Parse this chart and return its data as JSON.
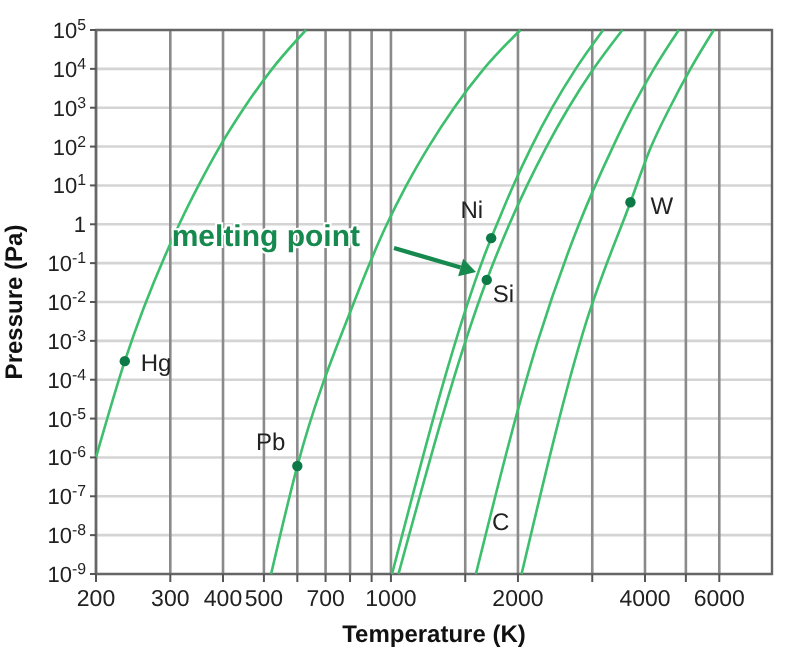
{
  "chart_data": {
    "type": "line",
    "xlabel": "Temperature (K)",
    "ylabel": "Pressure (Pa)",
    "log": "xy",
    "grid": true,
    "annotations": [
      "melting point"
    ],
    "marker": "none",
    "line_style": "solid",
    "xlim": [
      200,
      8000
    ],
    "ylim": [
      1e-09,
      100000
    ],
    "xticks": [
      200,
      300,
      400,
      500,
      {
        "value": 600,
        "label": null
      },
      700,
      {
        "value": 800,
        "label": null
      },
      {
        "value": 900,
        "label": null
      },
      1000,
      {
        "value": 1500,
        "label": null
      },
      2000,
      {
        "value": 3000,
        "label": null
      },
      4000,
      {
        "value": 5000,
        "label": null
      },
      6000
    ],
    "yticks": [
      {
        "value": 1e-09,
        "label": "10$^{-9}$"
      },
      {
        "value": 1e-08,
        "label": "10$^{-8}$"
      },
      {
        "value": 1e-07,
        "label": "10$^{-7}$"
      },
      {
        "value": 1e-06,
        "label": "10$^{-6}$"
      },
      {
        "value": 1e-05,
        "label": "10$^{-5}$"
      },
      {
        "value": 0.0001,
        "label": "10$^{-4}$"
      },
      {
        "value": 0.001,
        "label": "10$^{-3}$"
      },
      {
        "value": 0.01,
        "label": "10$^{-2}$"
      },
      {
        "value": 0.1,
        "label": "10$^{-1}$"
      },
      1,
      {
        "value": 10,
        "label": "10$^{1}$"
      },
      {
        "value": 100,
        "label": "10$^{2}$"
      },
      {
        "value": 1000,
        "label": "10$^{3}$"
      },
      {
        "value": 10000,
        "label": "10$^{4}$"
      },
      {
        "value": 100000,
        "label": "10$^{5}$"
      }
    ],
    "series": [
      {
        "name": "Hg",
        "color": "#3dbf6e",
        "x": [
          200,
          234,
          315,
          350,
          393,
          449,
          523,
          629
        ],
        "values": [
          1e-06,
          0.0003,
          1,
          10,
          100,
          1000,
          10000,
          100000
        ]
      },
      {
        "name": "Pb",
        "color": "#3dbf6e",
        "x": [
          520,
          600,
          818,
          978,
          1088,
          1229,
          1412,
          1660,
          2027
        ],
        "values": [
          1e-09,
          6e-07,
          0.01,
          1,
          10,
          100,
          1000,
          10000,
          100000
        ]
      },
      {
        "name": "Ni",
        "color": "#3dbf6e",
        "x": [
          1006,
          1728,
          1783,
          1950,
          2154,
          2410,
          2741,
          3184
        ],
        "values": [
          1e-09,
          0.44,
          1,
          10,
          100,
          1000,
          10000,
          100000
        ]
      },
      {
        "name": "Si",
        "color": "#3dbf6e",
        "x": [
          1042,
          1687,
          1908,
          2102,
          2339,
          2636,
          3021,
          3537
        ],
        "values": [
          1e-09,
          0.037,
          1,
          10,
          100,
          1000,
          10000,
          100000
        ]
      },
      {
        "name": "W",
        "color": "#3dbf6e",
        "x": [
          2040,
          2915,
          3695,
          4137,
          4579,
          5127,
          5823
        ],
        "values": [
          1e-09,
          0.0035,
          3.7,
          100,
          1000,
          10000,
          100000
        ]
      },
      {
        "name": "C",
        "color": "#3dbf6e",
        "x": [
          1590,
          2230,
          2790,
          3360,
          3730,
          4200,
          4810
        ],
        "values": [
          1e-09,
          0.001,
          1,
          100,
          1000,
          10000,
          100000
        ]
      },
      {
        "type": "scatter",
        "marker": "circle",
        "color": "#0b7a46",
        "x": [
          234,
          600,
          1728,
          1687,
          3695
        ],
        "values": [
          0.0003,
          6e-07,
          0.44,
          0.037,
          3.7
        ]
      }
    ]
  }
}
